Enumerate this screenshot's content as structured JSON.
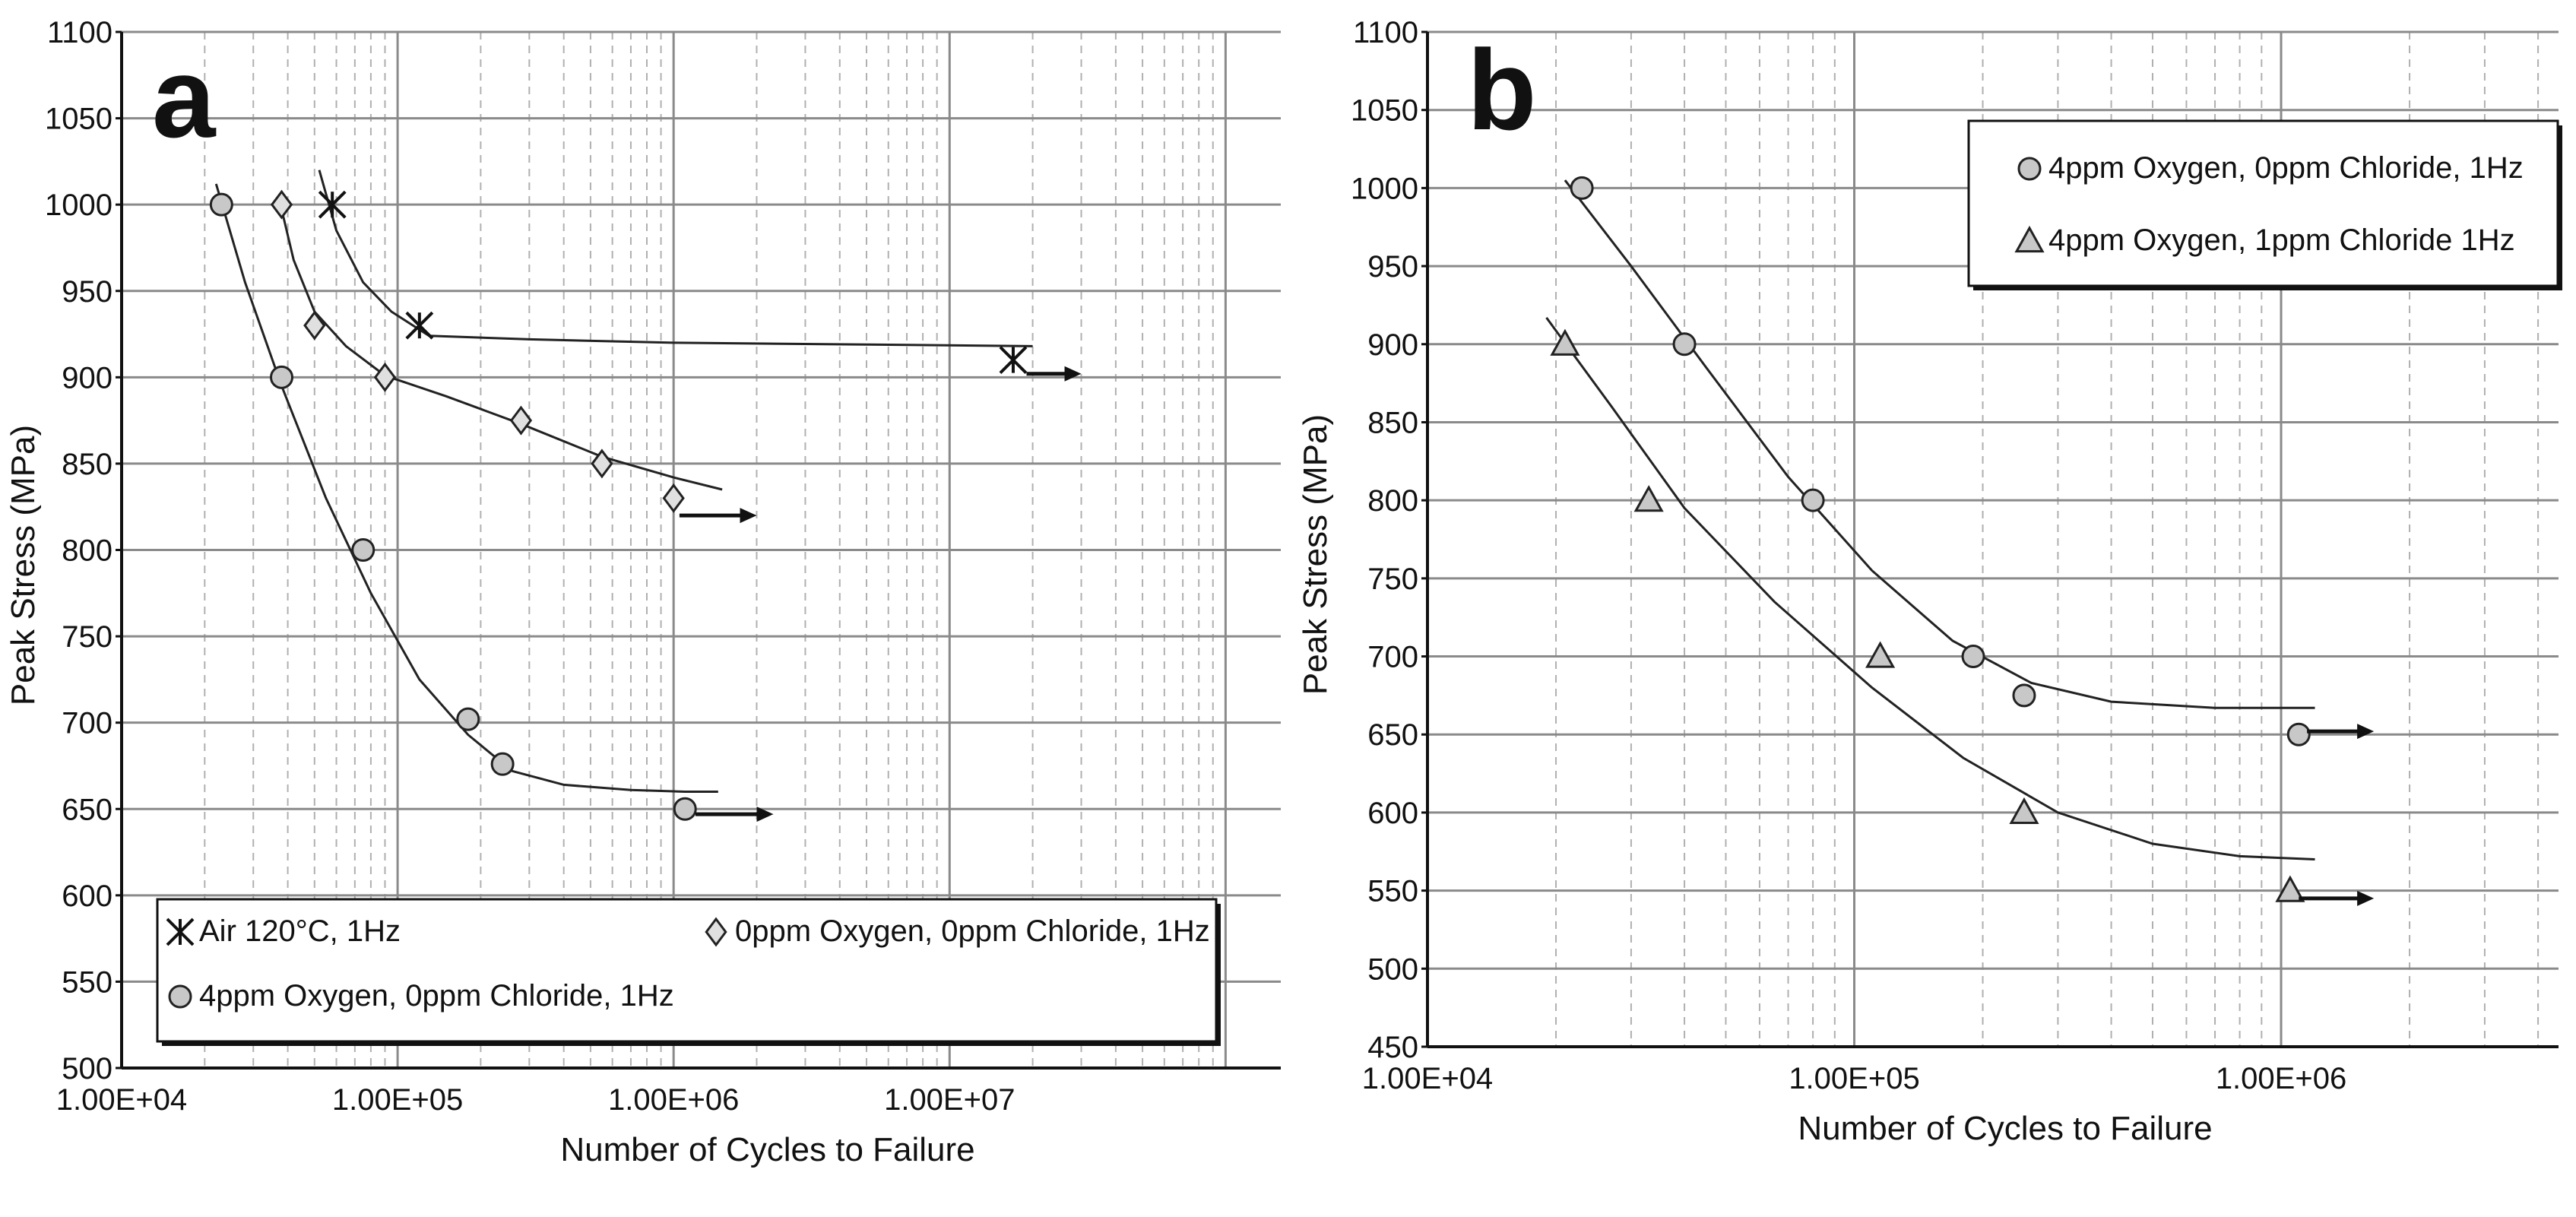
{
  "chart_data": [
    {
      "panel": "a",
      "type": "scatter",
      "title": "",
      "xlabel": "Number of Cycles to Failure",
      "ylabel": "Peak Stress (MPa)",
      "x_scale": "log",
      "xlim": [
        10000,
        40000000
      ],
      "ylim": [
        500,
        1100
      ],
      "x_ticks": [
        "1.00E+04",
        "1.00E+05",
        "1.00E+06",
        "1.00E+07"
      ],
      "y_ticks": [
        "500",
        "550",
        "600",
        "650",
        "700",
        "750",
        "800",
        "850",
        "900",
        "950",
        "1000",
        "1050",
        "1100"
      ],
      "grid": true,
      "legend_position": "bottom",
      "series": [
        {
          "name": "Air 120°C, 1Hz",
          "marker": "asterisk",
          "points": [
            [
              58000,
              1000
            ],
            [
              120000,
              930
            ],
            [
              17000000,
              910
            ]
          ],
          "fit": [
            [
              52000,
              1020
            ],
            [
              60000,
              985
            ],
            [
              75000,
              955
            ],
            [
              95000,
              938
            ],
            [
              130000,
              924
            ],
            [
              300000,
              922
            ],
            [
              1000000,
              920
            ],
            [
              5000000,
              919
            ],
            [
              20000000,
              918
            ]
          ],
          "runout_arrow": [
            19000000,
            30000000,
            902
          ]
        },
        {
          "name": "0ppm Oxygen, 0ppm Chloride, 1Hz",
          "marker": "diamond",
          "points": [
            [
              38000,
              1000
            ],
            [
              50000,
              930
            ],
            [
              90000,
              900
            ],
            [
              280000,
              875
            ],
            [
              550000,
              850
            ],
            [
              1000000,
              830
            ]
          ],
          "fit": [
            [
              37000,
              1005
            ],
            [
              42000,
              968
            ],
            [
              50000,
              938
            ],
            [
              65000,
              918
            ],
            [
              90000,
              901
            ],
            [
              150000,
              889
            ],
            [
              280000,
              873
            ],
            [
              550000,
              854
            ],
            [
              1000000,
              842
            ],
            [
              1500000,
              835
            ]
          ],
          "runout_arrow": [
            1050000,
            2000000,
            820
          ]
        },
        {
          "name": "4ppm Oxygen, 0ppm Chloride, 1Hz",
          "marker": "circle",
          "points": [
            [
              23000,
              1000
            ],
            [
              38000,
              900
            ],
            [
              75000,
              800
            ],
            [
              180000,
              702
            ],
            [
              240000,
              676
            ],
            [
              1100000,
              650
            ]
          ],
          "fit": [
            [
              22000,
              1012
            ],
            [
              28000,
              955
            ],
            [
              38000,
              895
            ],
            [
              55000,
              830
            ],
            [
              80000,
              775
            ],
            [
              120000,
              725
            ],
            [
              180000,
              693
            ],
            [
              260000,
              672
            ],
            [
              400000,
              664
            ],
            [
              700000,
              661
            ],
            [
              1100000,
              660
            ],
            [
              1450000,
              660
            ]
          ],
          "runout_arrow": [
            1200000,
            2300000,
            647
          ]
        }
      ]
    },
    {
      "panel": "b",
      "type": "scatter",
      "title": "",
      "xlabel": "Number of Cycles to Failure",
      "ylabel": "Peak Stress (MPa)",
      "x_scale": "log",
      "xlim": [
        10000,
        4500000
      ],
      "ylim": [
        450,
        1100
      ],
      "x_ticks": [
        "1.00E+04",
        "1.00E+05",
        "1.00E+06"
      ],
      "y_ticks": [
        "450",
        "500",
        "550",
        "600",
        "650",
        "700",
        "750",
        "800",
        "850",
        "900",
        "950",
        "1000",
        "1050",
        "1100"
      ],
      "grid": true,
      "legend_position": "top-right",
      "series": [
        {
          "name": "4ppm Oxygen, 0ppm Chloride, 1Hz",
          "marker": "circle",
          "points": [
            [
              23000,
              1000
            ],
            [
              40000,
              900
            ],
            [
              80000,
              800
            ],
            [
              190000,
              700
            ],
            [
              250000,
              675
            ],
            [
              1100000,
              650
            ]
          ],
          "fit": [
            [
              21000,
              1005
            ],
            [
              30000,
              950
            ],
            [
              45000,
              885
            ],
            [
              70000,
              815
            ],
            [
              110000,
              755
            ],
            [
              170000,
              710
            ],
            [
              260000,
              683
            ],
            [
              400000,
              671
            ],
            [
              700000,
              667
            ],
            [
              1200000,
              667
            ]
          ],
          "runout_arrow": [
            1150000,
            1650000,
            652
          ]
        },
        {
          "name": "4ppm Oxygen, 1ppm Chloride 1Hz",
          "marker": "triangle",
          "points": [
            [
              21000,
              900
            ],
            [
              33000,
              800
            ],
            [
              115000,
              700
            ],
            [
              250000,
              600
            ],
            [
              1050000,
              550
            ]
          ],
          "fit": [
            [
              19000,
              917
            ],
            [
              27000,
              860
            ],
            [
              40000,
              795
            ],
            [
              65000,
              735
            ],
            [
              110000,
              680
            ],
            [
              180000,
              635
            ],
            [
              300000,
              600
            ],
            [
              500000,
              580
            ],
            [
              800000,
              572
            ],
            [
              1200000,
              570
            ]
          ],
          "runout_arrow": [
            1100000,
            1650000,
            545
          ]
        }
      ]
    }
  ],
  "panels": [
    {
      "letter": "a"
    },
    {
      "letter": "b"
    }
  ]
}
